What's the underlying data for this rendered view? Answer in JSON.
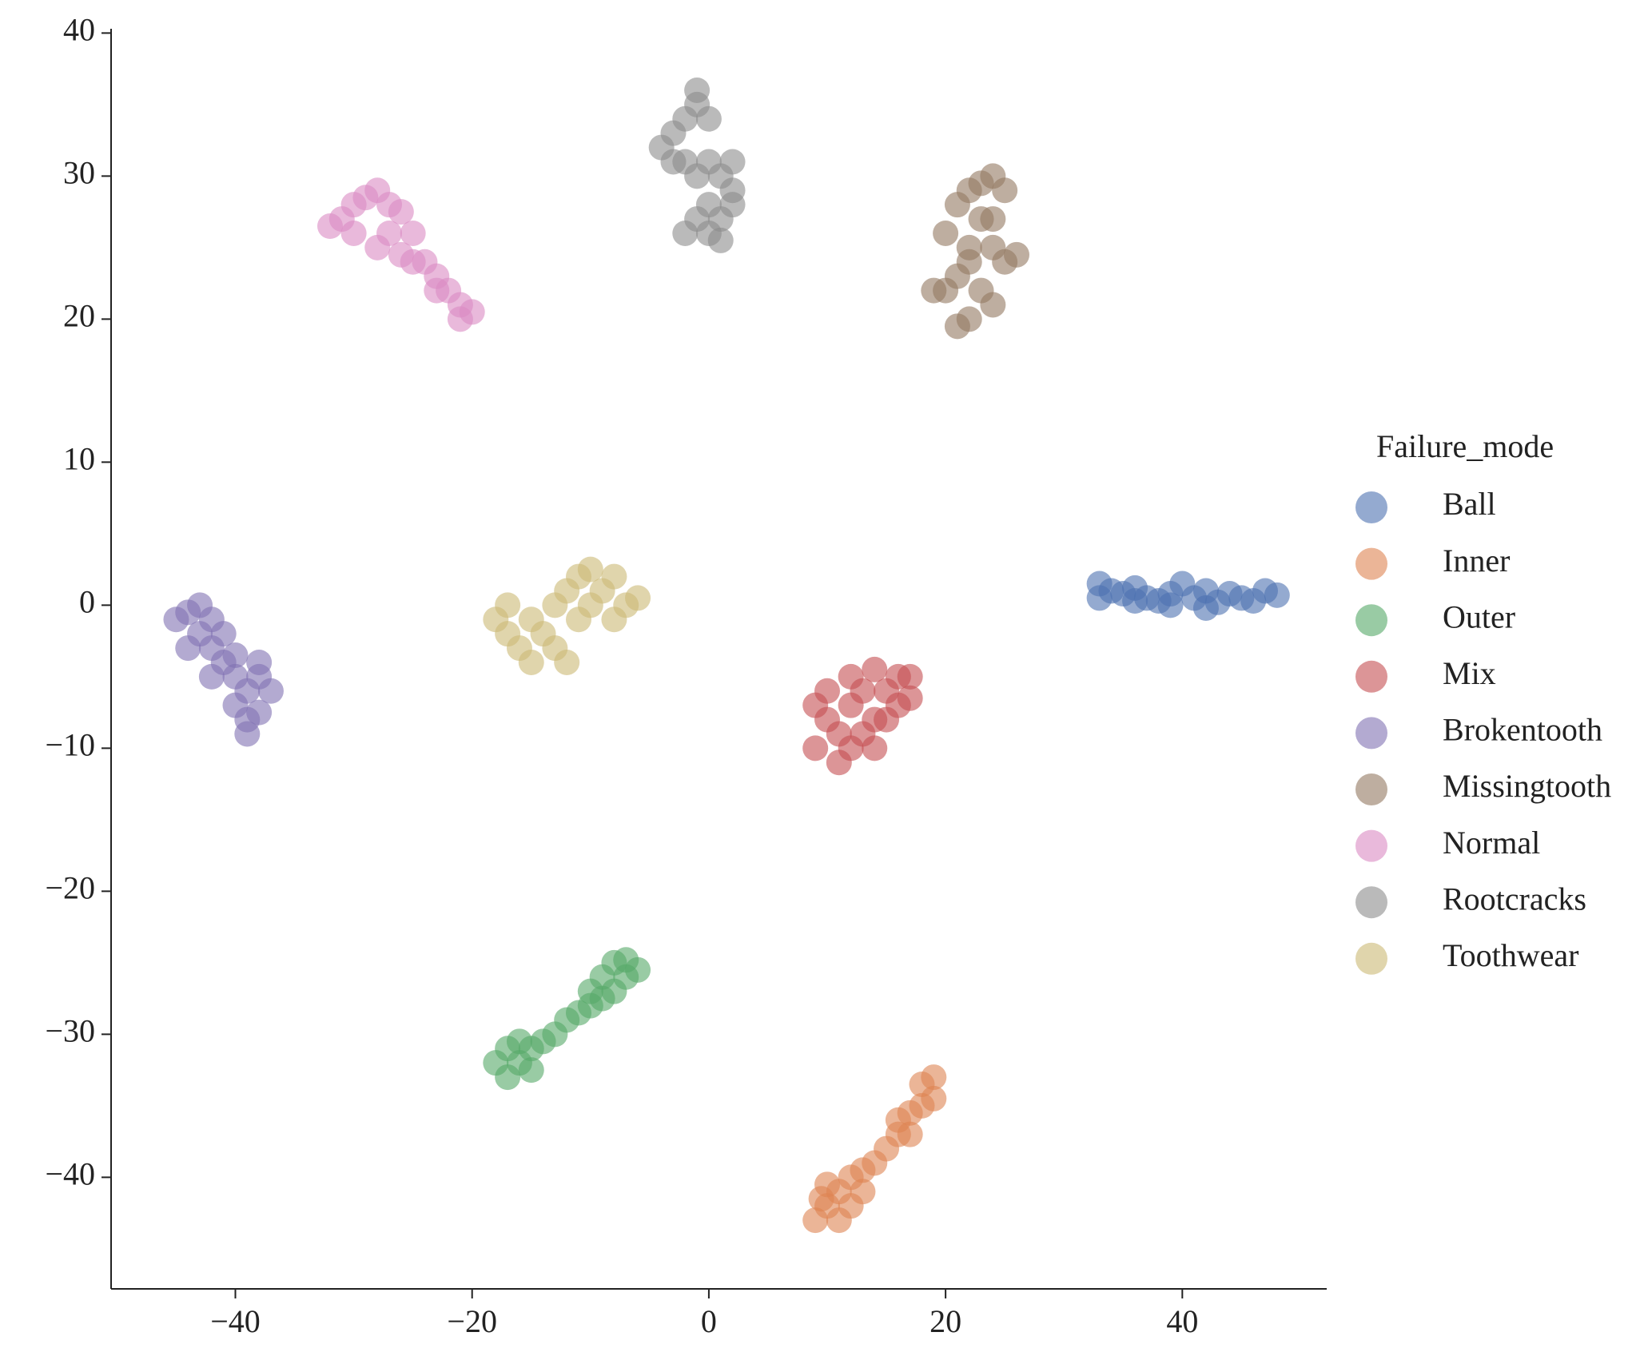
{
  "chart_data": {
    "type": "scatter",
    "legend_title": "Failure_mode",
    "legend": "center right outside",
    "xlim": [
      -50.5,
      52.2
    ],
    "ylim": [
      -47.8,
      40.3
    ],
    "xticks": [
      {
        "value": -40,
        "label": "−40"
      },
      {
        "value": -20,
        "label": "−20"
      },
      0,
      20,
      40
    ],
    "yticks": [
      {
        "value": -40,
        "label": "−40"
      },
      {
        "value": -30,
        "label": "−30"
      },
      {
        "value": -20,
        "label": "−20"
      },
      {
        "value": -10,
        "label": "−10"
      },
      0,
      10,
      20,
      30,
      40
    ],
    "series": [
      {
        "name": "Ball",
        "color": "#4c72b0",
        "x": [
          33,
          34,
          35,
          36,
          37,
          38,
          39,
          40,
          41,
          42,
          43,
          44,
          45,
          46,
          47,
          48,
          33,
          36,
          39,
          42
        ],
        "values": [
          1.5,
          1,
          0.8,
          1.2,
          0.5,
          0.3,
          0.8,
          1.5,
          0.5,
          1,
          0.2,
          0.8,
          0.5,
          0.3,
          1,
          0.7,
          0.5,
          0.3,
          0,
          -0.2
        ]
      },
      {
        "name": "Inner",
        "color": "#dd8452",
        "x": [
          9,
          10,
          10,
          11,
          12,
          12,
          13,
          14,
          15,
          16,
          16,
          17,
          18,
          18,
          19,
          9.5,
          11,
          13,
          17,
          19
        ],
        "values": [
          -43,
          -42,
          -40.5,
          -41,
          -40,
          -42,
          -39.5,
          -39,
          -38,
          -37,
          -36,
          -35.5,
          -35,
          -33.5,
          -34.5,
          -41.5,
          -43,
          -41,
          -37,
          -33
        ]
      },
      {
        "name": "Outer",
        "color": "#55a868",
        "x": [
          -18,
          -17,
          -17,
          -16,
          -16,
          -15,
          -14,
          -13,
          -12,
          -11,
          -10,
          -9,
          -8,
          -9,
          -8,
          -7,
          -6,
          -7,
          -10,
          -15
        ],
        "values": [
          -32,
          -33,
          -31,
          -32,
          -30.5,
          -31,
          -30.5,
          -30,
          -29,
          -28.5,
          -28,
          -27.5,
          -27,
          -26,
          -25,
          -26,
          -25.5,
          -24.8,
          -27,
          -32.5
        ]
      },
      {
        "name": "Mix",
        "color": "#c44e52",
        "x": [
          9,
          10,
          10,
          11,
          11,
          12,
          12,
          13,
          13,
          14,
          14,
          15,
          15,
          16,
          16,
          17,
          9,
          12,
          14,
          17
        ],
        "values": [
          -10,
          -8,
          -6,
          -11,
          -9,
          -7,
          -5,
          -9,
          -6,
          -8,
          -4.5,
          -6,
          -8,
          -5,
          -7,
          -6.5,
          -7,
          -10,
          -10,
          -5
        ]
      },
      {
        "name": "Brokentooth",
        "color": "#8172b3",
        "x": [
          -45,
          -44,
          -43,
          -42,
          -43,
          -44,
          -42,
          -41,
          -41,
          -40,
          -40,
          -39,
          -38,
          -38,
          -39,
          -38,
          -40,
          -37,
          -42,
          -39
        ],
        "values": [
          -1,
          -0.5,
          0,
          -1,
          -2,
          -3,
          -3,
          -2,
          -4,
          -3.5,
          -5,
          -6,
          -5,
          -4,
          -8,
          -7.5,
          -7,
          -6,
          -5,
          -9
        ]
      },
      {
        "name": "Missingtooth",
        "color": "#937860",
        "x": [
          20,
          21,
          22,
          23,
          24,
          25,
          22,
          24,
          25,
          26,
          21,
          23,
          22,
          21,
          24,
          19,
          20,
          23,
          24,
          22
        ],
        "values": [
          26,
          28,
          29,
          27,
          30,
          29,
          25,
          25,
          24,
          24.5,
          23,
          22,
          20,
          19.5,
          21,
          22,
          22,
          29.5,
          27,
          24
        ]
      },
      {
        "name": "Normal",
        "color": "#da8bc3",
        "x": [
          -32,
          -31,
          -30,
          -29,
          -28,
          -27,
          -30,
          -28,
          -27,
          -26,
          -25,
          -25,
          -24,
          -23,
          -23,
          -22,
          -21,
          -20,
          -21,
          -26
        ],
        "values": [
          26.5,
          27,
          28,
          28.5,
          29,
          28,
          26,
          25,
          26,
          27.5,
          26,
          24,
          24,
          23,
          22,
          22,
          21,
          20.5,
          20,
          24.5
        ]
      },
      {
        "name": "Rootcracks",
        "color": "#8c8c8c",
        "x": [
          -4,
          -3,
          -2,
          -1,
          -1,
          0,
          -2,
          -1,
          0,
          1,
          2,
          2,
          0,
          1,
          -1,
          0,
          1,
          -3,
          -2,
          2
        ],
        "values": [
          32,
          33,
          34,
          35,
          36,
          34,
          31,
          30,
          31,
          30,
          29,
          28,
          28,
          27,
          27,
          26,
          25.5,
          31,
          26,
          31
        ]
      },
      {
        "name": "Toothwear",
        "color": "#ccb974",
        "x": [
          -18,
          -17,
          -17,
          -16,
          -15,
          -15,
          -14,
          -13,
          -13,
          -12,
          -12,
          -11,
          -11,
          -10,
          -10,
          -9,
          -8,
          -7,
          -6,
          -8
        ],
        "values": [
          -1,
          -2,
          0,
          -3,
          -1,
          -4,
          -2,
          -3,
          0,
          -4,
          1,
          -1,
          2,
          0,
          2.5,
          1,
          -1,
          0,
          0.5,
          2
        ]
      }
    ]
  }
}
